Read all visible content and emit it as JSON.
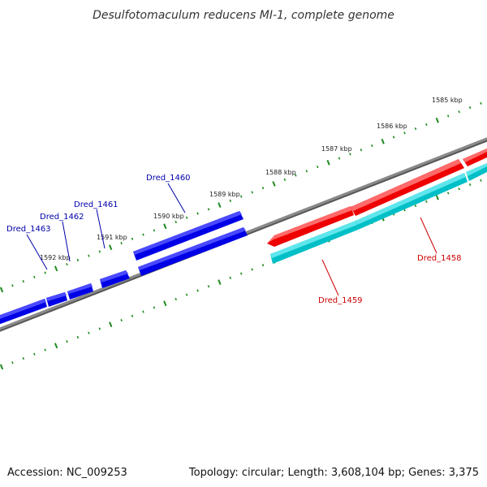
{
  "title": "Desulfotomaculum reducens MI-1, complete genome",
  "footer": {
    "accession": "Accession: NC_009253",
    "summary": "Topology: circular; Length: 3,608,104 bp; Genes: 3,375"
  },
  "colors": {
    "backbone": "#808080",
    "tick": "#1e8a1e",
    "forward_gene": "#0000e6",
    "forward_label": "#0000aa",
    "reverse_gene": "#ee0000",
    "reverse_label": "#cc0000",
    "cds_track": "#00cccc"
  },
  "scale_ticks": [
    {
      "label": "1585 kbp",
      "kbp": 1585
    },
    {
      "label": "1586 kbp",
      "kbp": 1586
    },
    {
      "label": "1587 kbp",
      "kbp": 1587
    },
    {
      "label": "1588 kbp",
      "kbp": 1588
    },
    {
      "label": "1589 kbp",
      "kbp": 1589
    },
    {
      "label": "1590 kbp",
      "kbp": 1590
    },
    {
      "label": "1591 kbp",
      "kbp": 1591
    },
    {
      "label": "1592 kbp",
      "kbp": 1592
    }
  ],
  "genes": [
    {
      "name": "Dred_1458",
      "strand": "reverse"
    },
    {
      "name": "Dred_1459",
      "strand": "reverse"
    },
    {
      "name": "Dred_1460",
      "strand": "forward"
    },
    {
      "name": "Dred_1461",
      "strand": "forward"
    },
    {
      "name": "Dred_1462",
      "strand": "forward"
    },
    {
      "name": "Dred_1463",
      "strand": "forward"
    }
  ]
}
